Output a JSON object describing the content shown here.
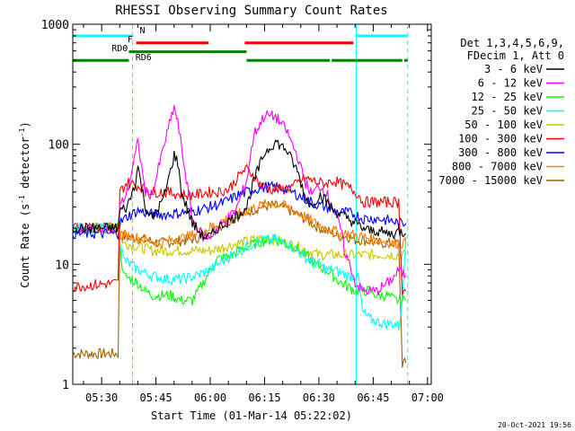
{
  "chart_data": {
    "type": "line",
    "title": "RHESSI Observing Summary Count Rates",
    "xlabel": "Start Time (01-Mar-14 05:22:02)",
    "ylabel_main": "Count Rate (s",
    "ylabel_sup": "-1",
    "ylabel_end": " detector",
    "ylabel_close": ")",
    "yscale": "log",
    "ylim": [
      1,
      1000
    ],
    "xlim_minutes": [
      0,
      99
    ],
    "y_tick_labels": [
      {
        "value": 1,
        "label": "1"
      },
      {
        "value": 10,
        "label": "10"
      },
      {
        "value": 100,
        "label": "100"
      },
      {
        "value": 1000,
        "label": "1000"
      }
    ],
    "x_tick_labels": [
      {
        "minutes": 7.97,
        "label": "05:30"
      },
      {
        "minutes": 22.97,
        "label": "05:45"
      },
      {
        "minutes": 37.97,
        "label": "06:00"
      },
      {
        "minutes": 52.97,
        "label": "06:15"
      },
      {
        "minutes": 67.97,
        "label": "06:30"
      },
      {
        "minutes": 82.97,
        "label": "06:45"
      },
      {
        "minutes": 97.97,
        "label": "07:00"
      }
    ],
    "legend_header": [
      "Det 1,3,4,5,6,9,",
      "FDecim 1, Att 0"
    ],
    "series": [
      {
        "name": "3 - 6 keV",
        "color": "#000000",
        "key": "s1"
      },
      {
        "name": "6 - 12 keV",
        "color": "#ff00ff",
        "key": "s2"
      },
      {
        "name": "12 - 25 keV",
        "color": "#00ff00",
        "key": "s3"
      },
      {
        "name": "25 - 50 keV",
        "color": "#00ffff",
        "key": "s4"
      },
      {
        "name": "50 - 100 keV",
        "color": "#c8c800",
        "key": "s5"
      },
      {
        "name": "100 - 300 keV",
        "color": "#ff0000",
        "key": "s6"
      },
      {
        "name": "300 - 800 keV",
        "color": "#0000ff",
        "key": "s7"
      },
      {
        "name": "800 - 7000 keV",
        "color": "#ff8000",
        "key": "s8"
      },
      {
        "name": "7000 - 15000 keV",
        "color": "#a06400",
        "key": "s9"
      }
    ],
    "series_points": {
      "s1": [
        [
          0,
          20
        ],
        [
          12.5,
          20
        ],
        [
          13,
          28
        ],
        [
          15,
          30
        ],
        [
          17,
          45
        ],
        [
          18,
          65
        ],
        [
          20,
          30
        ],
        [
          22,
          24
        ],
        [
          25,
          35
        ],
        [
          27,
          60
        ],
        [
          28,
          82
        ],
        [
          29,
          70
        ],
        [
          30,
          40
        ],
        [
          33,
          22
        ],
        [
          36,
          17
        ],
        [
          38,
          17
        ],
        [
          40,
          20
        ],
        [
          45,
          25
        ],
        [
          48,
          30
        ],
        [
          50,
          50
        ],
        [
          53,
          85
        ],
        [
          56,
          105
        ],
        [
          59,
          90
        ],
        [
          62,
          60
        ],
        [
          64,
          38
        ],
        [
          66,
          30
        ],
        [
          68,
          38
        ],
        [
          70,
          34
        ],
        [
          72,
          28
        ],
        [
          75,
          25
        ],
        [
          78,
          22
        ],
        [
          80,
          20
        ],
        [
          82,
          19
        ],
        [
          84,
          19
        ],
        [
          87,
          18
        ],
        [
          89,
          18
        ],
        [
          90,
          19
        ],
        [
          92,
          18
        ]
      ],
      "s2": [
        [
          0,
          20
        ],
        [
          12.5,
          20
        ],
        [
          13,
          30
        ],
        [
          15,
          40
        ],
        [
          17,
          75
        ],
        [
          18,
          105
        ],
        [
          20,
          40
        ],
        [
          22,
          38
        ],
        [
          24,
          70
        ],
        [
          27,
          160
        ],
        [
          28,
          205
        ],
        [
          29,
          150
        ],
        [
          31,
          60
        ],
        [
          33,
          24
        ],
        [
          36,
          17
        ],
        [
          38,
          17
        ],
        [
          40,
          20
        ],
        [
          45,
          28
        ],
        [
          48,
          50
        ],
        [
          50,
          120
        ],
        [
          53,
          175
        ],
        [
          56,
          170
        ],
        [
          59,
          130
        ],
        [
          62,
          80
        ],
        [
          64,
          50
        ],
        [
          66,
          38
        ],
        [
          68,
          45
        ],
        [
          70,
          40
        ],
        [
          72,
          28
        ],
        [
          74,
          20
        ],
        [
          75,
          13
        ],
        [
          77,
          9
        ],
        [
          78,
          7
        ],
        [
          80,
          6
        ],
        [
          84,
          6
        ],
        [
          87,
          7
        ],
        [
          89,
          8
        ],
        [
          90,
          9
        ],
        [
          92,
          8
        ]
      ],
      "s3": [
        [
          0,
          20
        ],
        [
          12.5,
          20
        ],
        [
          14,
          8
        ],
        [
          18,
          7
        ],
        [
          20,
          6
        ],
        [
          22,
          5.5
        ],
        [
          24,
          5.5
        ],
        [
          27,
          5.5
        ],
        [
          30,
          5
        ],
        [
          33,
          5
        ],
        [
          36,
          7
        ],
        [
          38,
          9
        ],
        [
          40,
          11
        ],
        [
          44,
          12
        ],
        [
          48,
          14
        ],
        [
          52,
          15.5
        ],
        [
          55,
          16
        ],
        [
          58,
          15.5
        ],
        [
          61,
          14
        ],
        [
          64,
          12
        ],
        [
          67,
          10
        ],
        [
          70,
          9
        ],
        [
          72,
          8
        ],
        [
          74,
          7
        ],
        [
          76,
          6.5
        ],
        [
          78,
          6
        ],
        [
          80,
          6
        ],
        [
          82,
          6
        ],
        [
          84,
          5.5
        ],
        [
          87,
          5.5
        ],
        [
          89,
          5
        ],
        [
          91,
          5
        ],
        [
          92,
          5
        ]
      ],
      "s4": [
        [
          0,
          20
        ],
        [
          12.5,
          20
        ],
        [
          14,
          11
        ],
        [
          18,
          9
        ],
        [
          22,
          8
        ],
        [
          26,
          7.5
        ],
        [
          30,
          7.5
        ],
        [
          34,
          8
        ],
        [
          38,
          9
        ],
        [
          42,
          11
        ],
        [
          46,
          13
        ],
        [
          50,
          15
        ],
        [
          53,
          16
        ],
        [
          56,
          16
        ],
        [
          59,
          15
        ],
        [
          62,
          13
        ],
        [
          65,
          11
        ],
        [
          68,
          10
        ],
        [
          70,
          9
        ],
        [
          72,
          9
        ],
        [
          74,
          8.5
        ],
        [
          76,
          8
        ],
        [
          78,
          8
        ],
        [
          79,
          7.5
        ],
        [
          80,
          4
        ],
        [
          82,
          3.5
        ],
        [
          86,
          3.2
        ],
        [
          89,
          3.2
        ],
        [
          90,
          3
        ],
        [
          91,
          5
        ],
        [
          92,
          17
        ]
      ],
      "s5": [
        [
          0,
          20
        ],
        [
          12.5,
          20
        ],
        [
          14,
          15
        ],
        [
          18,
          14
        ],
        [
          22,
          13
        ],
        [
          26,
          13
        ],
        [
          30,
          13
        ],
        [
          34,
          13
        ],
        [
          38,
          13
        ],
        [
          42,
          14
        ],
        [
          46,
          15
        ],
        [
          50,
          16
        ],
        [
          53,
          16.5
        ],
        [
          56,
          16
        ],
        [
          59,
          15
        ],
        [
          62,
          14
        ],
        [
          65,
          13
        ],
        [
          68,
          12
        ],
        [
          72,
          12
        ],
        [
          74,
          12
        ],
        [
          76,
          12
        ],
        [
          78,
          12
        ],
        [
          80,
          12
        ],
        [
          84,
          12
        ],
        [
          87,
          12
        ],
        [
          89,
          12
        ],
        [
          90,
          12
        ],
        [
          92,
          12
        ]
      ],
      "s6": [
        [
          0,
          6.5
        ],
        [
          12.5,
          7
        ],
        [
          13,
          40
        ],
        [
          15,
          48
        ],
        [
          18,
          45
        ],
        [
          22,
          40
        ],
        [
          26,
          40
        ],
        [
          30,
          38
        ],
        [
          34,
          38
        ],
        [
          38,
          40
        ],
        [
          40,
          40
        ],
        [
          43,
          42
        ],
        [
          45,
          50
        ],
        [
          47,
          60
        ],
        [
          48,
          62
        ],
        [
          50,
          55
        ],
        [
          52,
          45
        ],
        [
          55,
          42
        ],
        [
          58,
          42
        ],
        [
          61,
          45
        ],
        [
          64,
          52
        ],
        [
          66,
          50
        ],
        [
          68,
          48
        ],
        [
          70,
          47
        ],
        [
          72,
          50
        ],
        [
          74,
          47
        ],
        [
          76,
          44
        ],
        [
          78,
          40
        ],
        [
          79,
          38
        ],
        [
          80,
          33
        ],
        [
          84,
          33
        ],
        [
          88,
          33
        ],
        [
          90,
          33
        ],
        [
          91,
          6
        ],
        [
          92,
          6
        ]
      ],
      "s7": [
        [
          0,
          18
        ],
        [
          12.5,
          18
        ],
        [
          13,
          22
        ],
        [
          15,
          25
        ],
        [
          18,
          28
        ],
        [
          22,
          26
        ],
        [
          26,
          26
        ],
        [
          30,
          27
        ],
        [
          34,
          28
        ],
        [
          38,
          30
        ],
        [
          42,
          33
        ],
        [
          46,
          38
        ],
        [
          50,
          42
        ],
        [
          53,
          44
        ],
        [
          56,
          44
        ],
        [
          59,
          42
        ],
        [
          62,
          38
        ],
        [
          65,
          34
        ],
        [
          68,
          31
        ],
        [
          70,
          30
        ],
        [
          72,
          28
        ],
        [
          74,
          27
        ],
        [
          76,
          27
        ],
        [
          78,
          26
        ],
        [
          80,
          24
        ],
        [
          84,
          24
        ],
        [
          88,
          23
        ],
        [
          90,
          22
        ],
        [
          92,
          22
        ]
      ],
      "s8": [
        [
          0,
          20
        ],
        [
          12.5,
          20
        ],
        [
          13,
          18
        ],
        [
          16,
          17
        ],
        [
          20,
          16
        ],
        [
          24,
          15
        ],
        [
          28,
          16
        ],
        [
          32,
          17
        ],
        [
          36,
          19
        ],
        [
          40,
          22
        ],
        [
          44,
          25
        ],
        [
          48,
          28
        ],
        [
          52,
          31
        ],
        [
          55,
          32
        ],
        [
          58,
          31
        ],
        [
          61,
          28
        ],
        [
          64,
          25
        ],
        [
          67,
          22
        ],
        [
          70,
          20
        ],
        [
          72,
          19
        ],
        [
          74,
          18
        ],
        [
          76,
          18
        ],
        [
          78,
          17.5
        ],
        [
          80,
          17
        ],
        [
          84,
          16
        ],
        [
          88,
          15
        ],
        [
          90,
          15
        ],
        [
          92,
          15
        ]
      ],
      "s9": [
        [
          0,
          1.8
        ],
        [
          12.5,
          1.8
        ],
        [
          13,
          17
        ],
        [
          16,
          17
        ],
        [
          20,
          16
        ],
        [
          24,
          15
        ],
        [
          28,
          15.5
        ],
        [
          32,
          16
        ],
        [
          36,
          17
        ],
        [
          40,
          20
        ],
        [
          44,
          24
        ],
        [
          48,
          27
        ],
        [
          52,
          30
        ],
        [
          55,
          31
        ],
        [
          58,
          30
        ],
        [
          61,
          27
        ],
        [
          64,
          24
        ],
        [
          67,
          21
        ],
        [
          70,
          19
        ],
        [
          72,
          18
        ],
        [
          74,
          17
        ],
        [
          76,
          17
        ],
        [
          78,
          16
        ],
        [
          80,
          16
        ],
        [
          84,
          15
        ],
        [
          88,
          15
        ],
        [
          90,
          15
        ],
        [
          91,
          1.5
        ],
        [
          92,
          1.5
        ]
      ]
    },
    "status_bars": [
      {
        "label": "",
        "color": "#00ffff",
        "y_value": 800,
        "spans": [
          [
            0,
            16.5
          ],
          [
            78.3,
            92.5
          ]
        ]
      },
      {
        "label": "N",
        "color": "#00ffff",
        "y_value": 800,
        "spans": []
      },
      {
        "label": "F",
        "color": "#ff0000",
        "y_value": 700,
        "spans": [
          [
            17.5,
            37.5
          ],
          [
            47.5,
            77.5
          ]
        ]
      },
      {
        "label": "RD0",
        "color": "#008000",
        "y_value": 590,
        "spans": [
          [
            15.5,
            48
          ]
        ]
      },
      {
        "label": "RD6",
        "color": "#008000",
        "y_value": 500,
        "spans": [
          [
            0,
            15.5
          ],
          [
            48,
            71
          ],
          [
            71.5,
            91
          ],
          [
            91.5,
            92.5
          ]
        ]
      }
    ],
    "vertical_lines": [
      {
        "minutes": 16.5,
        "color": "#00ffff",
        "style": "dashed"
      },
      {
        "minutes": 78.3,
        "color": "#00ffff",
        "style": "solid"
      },
      {
        "minutes": 92.5,
        "color": "#00ffff",
        "style": "dashed"
      }
    ],
    "timestamp": "20-Oct-2021 19:56"
  }
}
